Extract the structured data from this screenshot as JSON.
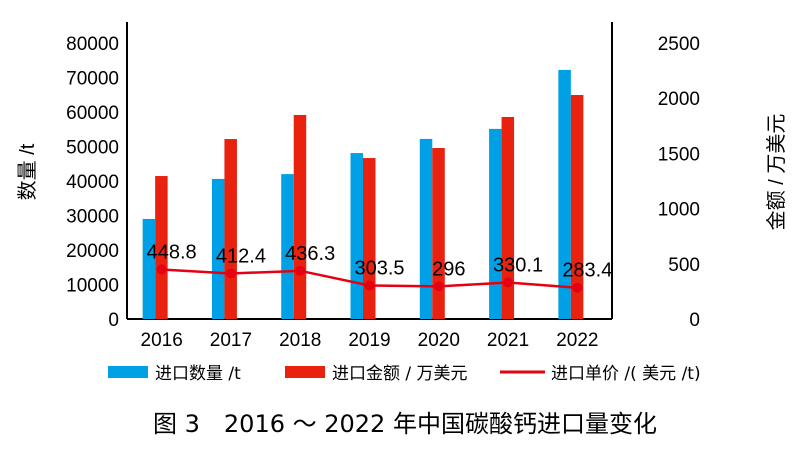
{
  "chart_data": {
    "type": "bar+line",
    "title": "图 3　2016 ～ 2022 年中国碳酸钙进口量变化",
    "categories": [
      "2016",
      "2017",
      "2018",
      "2019",
      "2020",
      "2021",
      "2022"
    ],
    "ylabel": "数量 /t",
    "y2label": "金额 / 万美元",
    "ylim": [
      0,
      80000
    ],
    "y2lim": [
      0,
      2500
    ],
    "yticks": [
      "0",
      "10000",
      "20000",
      "30000",
      "40000",
      "50000",
      "60000",
      "70000",
      "80000"
    ],
    "y2ticks": [
      "0",
      "500",
      "1000",
      "1500",
      "2000",
      "2500"
    ],
    "series": [
      {
        "name": "进口数量 /t",
        "type": "bar",
        "axis": "left",
        "color": "#00a0e6",
        "values": [
          29000,
          40600,
          42000,
          48100,
          52200,
          55100,
          72200
        ]
      },
      {
        "name": "进口金额 / 万美元",
        "type": "bar",
        "axis": "right",
        "color": "#e8220f",
        "values": [
          1295,
          1630,
          1848,
          1458,
          1549,
          1830,
          2029
        ]
      },
      {
        "name": "进口单价 /( 美元 /t)",
        "type": "line",
        "axis": "right",
        "color": "#e60012",
        "values": [
          448.8,
          412.4,
          436.3,
          303.5,
          296,
          330.1,
          283.4
        ],
        "labels": [
          "448.8",
          "412.4",
          "436.3",
          "303.5",
          "296",
          "330.1",
          "283.4"
        ]
      }
    ],
    "legend": "bottom",
    "grid": false
  }
}
